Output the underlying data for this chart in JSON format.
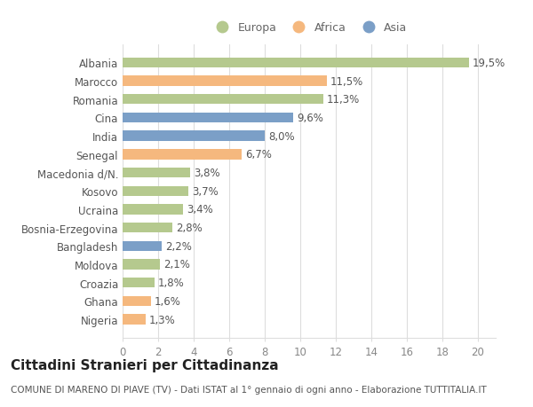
{
  "categories": [
    "Nigeria",
    "Ghana",
    "Croazia",
    "Moldova",
    "Bangladesh",
    "Bosnia-Erzegovina",
    "Ucraina",
    "Kosovo",
    "Macedonia d/N.",
    "Senegal",
    "India",
    "Cina",
    "Romania",
    "Marocco",
    "Albania"
  ],
  "values": [
    1.3,
    1.6,
    1.8,
    2.1,
    2.2,
    2.8,
    3.4,
    3.7,
    3.8,
    6.7,
    8.0,
    9.6,
    11.3,
    11.5,
    19.5
  ],
  "continents": [
    "Africa",
    "Africa",
    "Europa",
    "Europa",
    "Asia",
    "Europa",
    "Europa",
    "Europa",
    "Europa",
    "Africa",
    "Asia",
    "Asia",
    "Europa",
    "Africa",
    "Europa"
  ],
  "colors": {
    "Europa": "#b5c98e",
    "Africa": "#f5b87e",
    "Asia": "#7b9fc7"
  },
  "xlim": [
    0,
    21
  ],
  "xticks": [
    0,
    2,
    4,
    6,
    8,
    10,
    12,
    14,
    16,
    18,
    20
  ],
  "title": "Cittadini Stranieri per Cittadinanza",
  "subtitle": "COMUNE DI MARENO DI PIAVE (TV) - Dati ISTAT al 1° gennaio di ogni anno - Elaborazione TUTTITALIA.IT",
  "background_color": "#ffffff",
  "bar_height": 0.55,
  "label_fontsize": 8.5,
  "title_fontsize": 11,
  "subtitle_fontsize": 7.5,
  "tick_fontsize": 8.5,
  "legend_fontsize": 9
}
